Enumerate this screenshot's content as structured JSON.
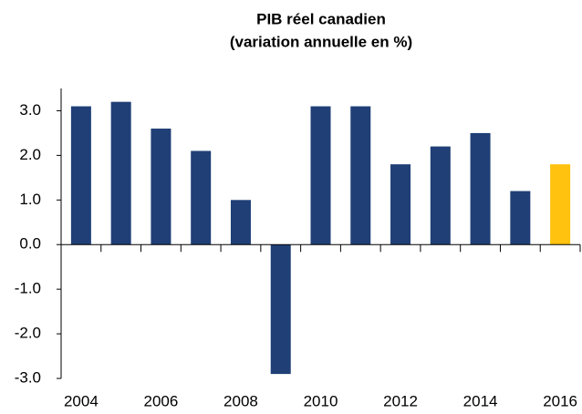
{
  "chart_data": {
    "type": "bar",
    "title": [
      "PIB réel canadien",
      "(variation annuelle en %)"
    ],
    "categories": [
      "2004",
      null,
      "2006",
      null,
      "2008",
      null,
      "2010",
      null,
      "2012",
      null,
      "2014",
      null,
      "2016"
    ],
    "values": [
      3.1,
      3.2,
      2.6,
      2.1,
      1.0,
      -2.9,
      3.1,
      3.1,
      1.8,
      2.2,
      2.5,
      1.2,
      1.8
    ],
    "colors": [
      "#1f3f76",
      "#1f3f76",
      "#1f3f76",
      "#1f3f76",
      "#1f3f76",
      "#1f3f76",
      "#1f3f76",
      "#1f3f76",
      "#1f3f76",
      "#1f3f76",
      "#1f3f76",
      "#1f3f76",
      "#ffc20e"
    ],
    "ylim": [
      -3.0,
      3.5
    ],
    "yticks": [
      {
        "value": -3,
        "label": "-3.0"
      },
      {
        "value": -2,
        "label": "-2.0"
      },
      {
        "value": -1,
        "label": "-1.0"
      },
      {
        "value": 0,
        "label": "0.0"
      },
      {
        "value": 1,
        "label": "1.0"
      },
      {
        "value": 2,
        "label": "2.0"
      },
      {
        "value": 3,
        "label": "3.0"
      }
    ],
    "grid": false
  }
}
